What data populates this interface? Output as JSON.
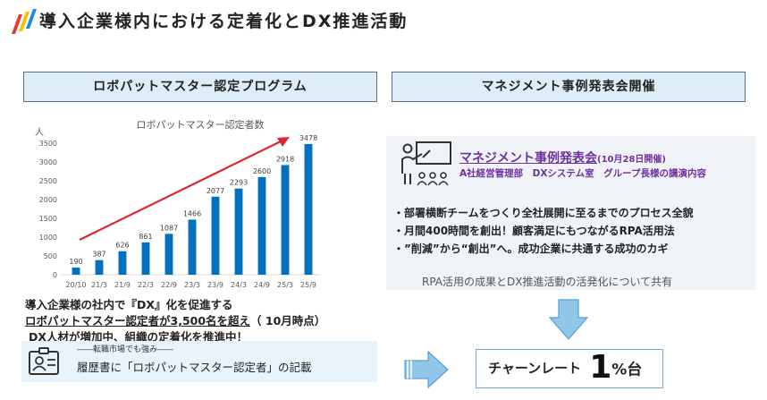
{
  "header": {
    "title": "導入企業様内における定着化とDX推進活動"
  },
  "left_section": {
    "heading": "ロボパットマスター認定プログラム",
    "note_line1": "導入企業様の社内で『DX』化を促進する",
    "note_line2_main": "ロボパットマスター認定者が3,500名を超え",
    "note_line2_tail": "（ 10月時点）",
    "note_line3": "DX人材が増加中、組織の定着化を推進中！",
    "resume_small": "――転職市場でも強み――",
    "resume_main": "履歴書に「ロボパットマスター認定者」の記載"
  },
  "right_section": {
    "heading": "マネジメント事例発表会開催",
    "event_title": "マネジメント事例発表会",
    "event_date": "(10月28日開催)",
    "event_speakers": "A社経営管理部　DXシステム室　グループ長様の講演内容",
    "bullets": [
      "・部署横断チームをつくり全社展開に至るまでのプロセス全貌",
      "・月間400時間を創出！顧客満足にもつながるRPA活用法",
      "・”削減”から“創出”へ。成功企業に共通する成功のカギ"
    ],
    "summary": "RPA活用の成果とDX推進活動の活発化について共有",
    "result_label": "チャーンレート",
    "result_value": "1",
    "result_unit": "%台"
  },
  "colors": {
    "bar": "#0070c0",
    "trend_arrow": "#e0262f",
    "accent_purple": "#7030a0",
    "logo_red": "#e53935",
    "logo_yellow": "#f5c400",
    "logo_blue": "#1e88e5",
    "down_arrow": "#8fc6ea"
  },
  "chart_data": {
    "type": "bar",
    "title": "ロボパットマスター認定者数",
    "ylabel": "人",
    "xlabel": "",
    "categories": [
      "20/10",
      "21/3",
      "21/9",
      "22/3",
      "22/9",
      "23/3",
      "23/9",
      "24/3",
      "24/9",
      "25/3",
      "25/9"
    ],
    "values": [
      190,
      387,
      626,
      861,
      1087,
      1466,
      2077,
      2293,
      2600,
      2918,
      3478
    ],
    "yticks": [
      0,
      500,
      1000,
      1500,
      2000,
      2500,
      3000,
      3500
    ],
    "ylim": [
      0,
      3500
    ],
    "grid": false,
    "data_labels": true,
    "trend_arrow": true
  }
}
